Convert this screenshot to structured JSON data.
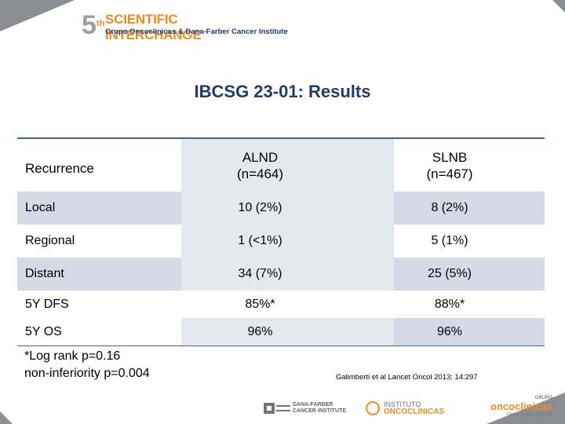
{
  "header": {
    "logo_number": "5",
    "logo_number_sup": "th",
    "logo_main": "SCIENTIFIC INTERCHANGE",
    "logo_sub": "Grupo Oncoclínicas & Dana-Farber Cancer Institute"
  },
  "slide": {
    "title": "IBCSG 23-01: Results"
  },
  "table": {
    "header": {
      "col1": "Recurrence",
      "col2_line1": "ALND",
      "col2_line2": "(n=464)",
      "col3_line1": "SLNB",
      "col3_line2": "(n=467)"
    },
    "rows": [
      {
        "label": "Local",
        "alnd": "10 (2%)",
        "slnb": "8 (2%)"
      },
      {
        "label": "Regional",
        "alnd": "1 (<1%)",
        "slnb": "5 (1%)"
      },
      {
        "label": "Distant",
        "alnd": "34 (7%)",
        "slnb": "25 (5%)"
      },
      {
        "label": "5Y DFS",
        "alnd": "85%*",
        "slnb": "88%*"
      },
      {
        "label": "5Y OS",
        "alnd": "96%",
        "slnb": "96%"
      }
    ]
  },
  "footnote": {
    "line1": "*Log rank p=0.16",
    "line2": "non-inferiority p=0.004"
  },
  "citation": "Galimberti et al Lancet Oncol 2013; 14:297",
  "footer_logos": {
    "dana_farber_line1": "DANA-FARBER",
    "dana_farber_line2": "CANCER INSTITUTE",
    "oncoclinicas_prefix": "INSTITUTO",
    "oncoclinicas_name": "ONCOCLÍNICAS",
    "grupo_top": "GRUPO",
    "grupo_main_a": "onco",
    "grupo_main_b": "clínicas",
    "grupo_sub": "Ciência e Paixão pela vida"
  },
  "colors": {
    "title": "#1f3c6b",
    "rule": "#3e66a3",
    "shade_dark": "#d4dbe6",
    "shade_light": "#e4e9f0",
    "accent_orange": "#f08b1f",
    "corner_gray": "#8a8d91"
  }
}
